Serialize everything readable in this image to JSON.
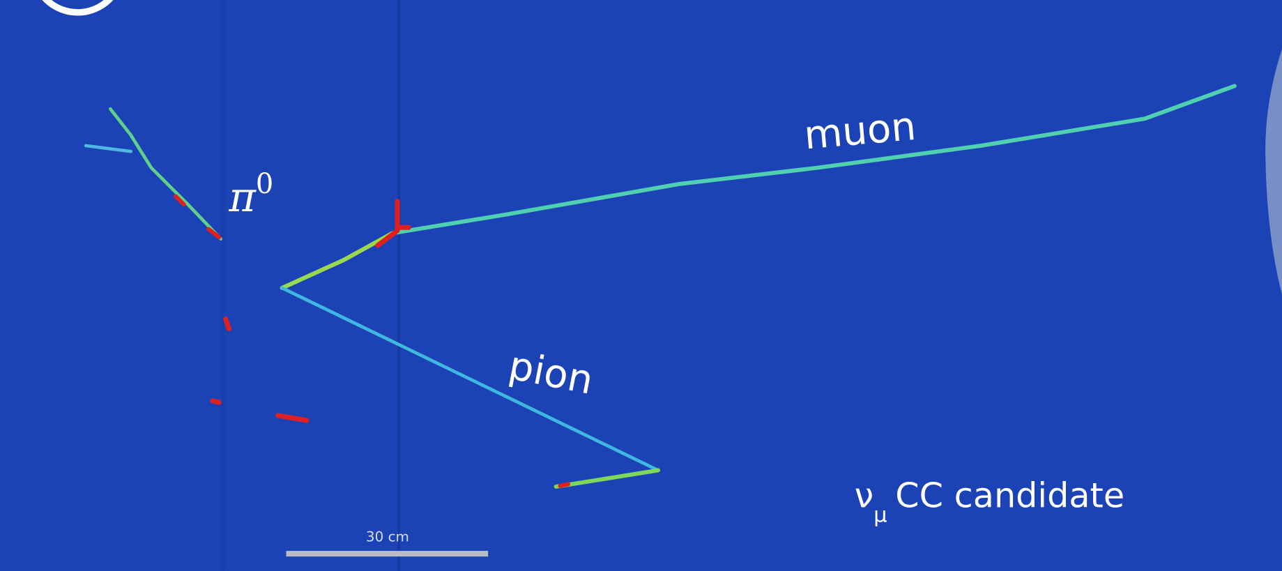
{
  "labels": {
    "pi0": {
      "symbol": "π",
      "superscript": "0"
    },
    "muon": "muon",
    "pion": "pion",
    "event": {
      "particle": "ν",
      "subscript": "μ",
      "text": "CC candidate"
    },
    "scale_bar": "30 cm"
  }
}
